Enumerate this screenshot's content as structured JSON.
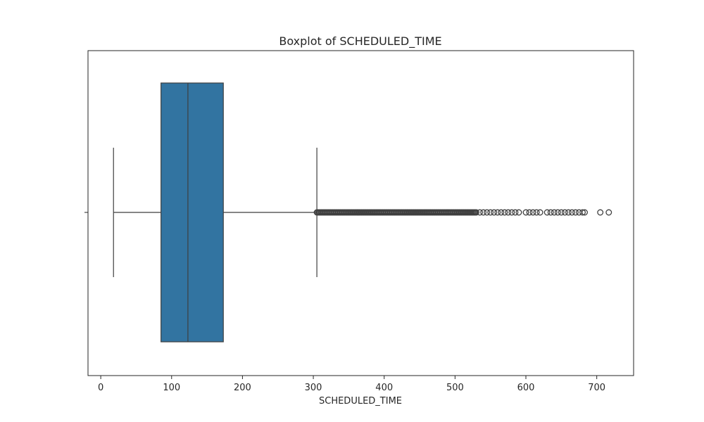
{
  "chart_data": {
    "type": "box",
    "title": "Boxplot of SCHEDULED_TIME",
    "xlabel": "SCHEDULED_TIME",
    "ylabel": "",
    "orientation": "horizontal",
    "xlim": [
      -18,
      752
    ],
    "xticks": [
      0,
      100,
      200,
      300,
      400,
      500,
      600,
      700
    ],
    "xtick_labels": [
      "0",
      "100",
      "200",
      "300",
      "400",
      "500",
      "600",
      "700"
    ],
    "grid": false,
    "box_color": "#3274a1",
    "line_color": "#3f3f3f",
    "series": [
      {
        "whisker_low": 18,
        "q1": 85,
        "median": 123,
        "q3": 173,
        "whisker_high": 305,
        "outlier_range_dense": [
          305,
          530
        ],
        "outliers_sparse": [
          535,
          540,
          545,
          550,
          555,
          560,
          565,
          570,
          575,
          580,
          585,
          590,
          600,
          605,
          610,
          615,
          620,
          630,
          635,
          640,
          645,
          650,
          655,
          660,
          665,
          670,
          675,
          680,
          683,
          705,
          717
        ]
      }
    ]
  }
}
